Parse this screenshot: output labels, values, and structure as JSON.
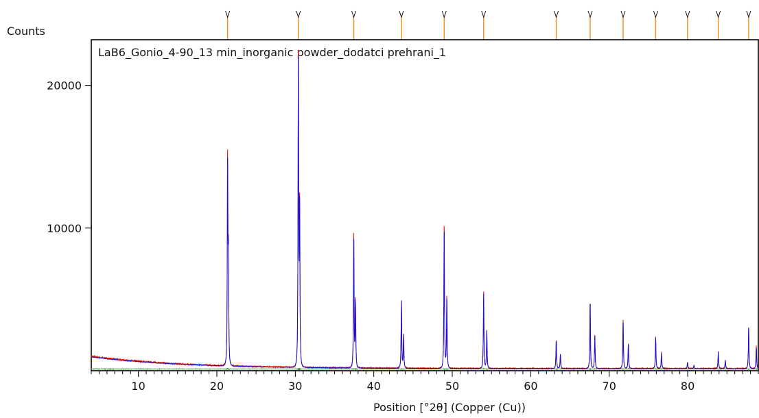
{
  "chart_data": {
    "type": "line",
    "title": "LaB6_Gonio_4-90_13 min_inorganic powder_dodatci prehrani_1",
    "xlabel": "Position [°2θ] (Copper (Cu))",
    "ylabel": "Counts",
    "xlim": [
      4,
      89
    ],
    "ylim": [
      0,
      23200
    ],
    "x_ticks": [
      10,
      20,
      30,
      40,
      50,
      60,
      70,
      80
    ],
    "x_tick_labels": [
      "10",
      "20",
      "30",
      "40",
      "50",
      "60",
      "70",
      "80"
    ],
    "y_ticks": [
      10000,
      20000
    ],
    "y_tick_labels": [
      "10000",
      "20000"
    ],
    "background": {
      "start": 1000,
      "decay": 0.085,
      "floor": 150
    },
    "peaks": [
      {
        "x": 21.37,
        "height": 14700,
        "width": 0.065
      },
      {
        "x": 30.39,
        "height": 23200,
        "width": 0.065
      },
      {
        "x": 37.45,
        "height": 9800,
        "width": 0.065
      },
      {
        "x": 43.52,
        "height": 4850,
        "width": 0.065
      },
      {
        "x": 48.97,
        "height": 10450,
        "width": 0.065
      },
      {
        "x": 54.0,
        "height": 5400,
        "width": 0.065
      },
      {
        "x": 63.25,
        "height": 2050,
        "width": 0.065
      },
      {
        "x": 67.57,
        "height": 4950,
        "width": 0.065
      },
      {
        "x": 71.77,
        "height": 3550,
        "width": 0.065
      },
      {
        "x": 75.92,
        "height": 2250,
        "width": 0.065
      },
      {
        "x": 79.98,
        "height": 450,
        "width": 0.065
      },
      {
        "x": 83.9,
        "height": 1200,
        "width": 0.065
      },
      {
        "x": 87.77,
        "height": 3100,
        "width": 0.065
      }
    ],
    "reference_markers": [
      21.37,
      30.39,
      37.45,
      43.52,
      48.97,
      54.0,
      63.25,
      67.57,
      71.77,
      75.92,
      79.98,
      83.9,
      87.77
    ],
    "series": [
      {
        "role": "observed",
        "color": "#e8170f"
      },
      {
        "role": "calculated",
        "color": "#1414d6"
      },
      {
        "role": "difference",
        "color": "#2e7d32"
      }
    ],
    "reference_color": "#f08a1c",
    "grid": false
  }
}
